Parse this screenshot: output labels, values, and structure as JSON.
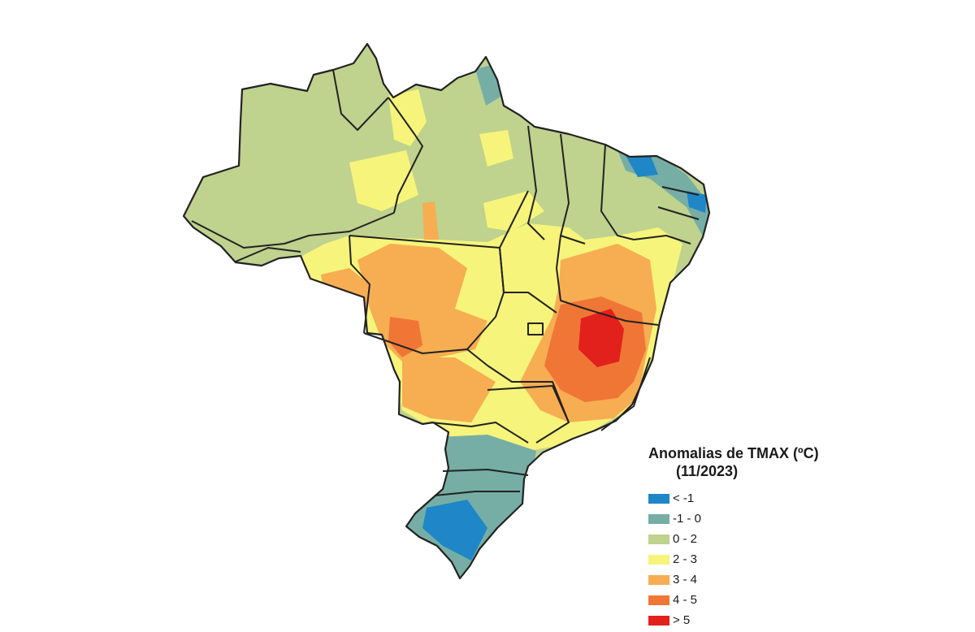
{
  "legend": {
    "title": "Anomalias de TMAX (ºC)",
    "period": "(11/2023)",
    "classes": [
      {
        "label": "< -1",
        "color": "#1f86c8"
      },
      {
        "label": "-1 - 0",
        "color": "#76aea6"
      },
      {
        "label": "0 - 2",
        "color": "#bfd28e"
      },
      {
        "label": "2 - 3",
        "color": "#f6f47a"
      },
      {
        "label": "3 - 4",
        "color": "#f7ad52"
      },
      {
        "label": "4 - 5",
        "color": "#f07636"
      },
      {
        "label": "> 5",
        "color": "#e2201c"
      }
    ]
  },
  "colors": {
    "boundary": "#222222",
    "background": "#ffffff"
  }
}
